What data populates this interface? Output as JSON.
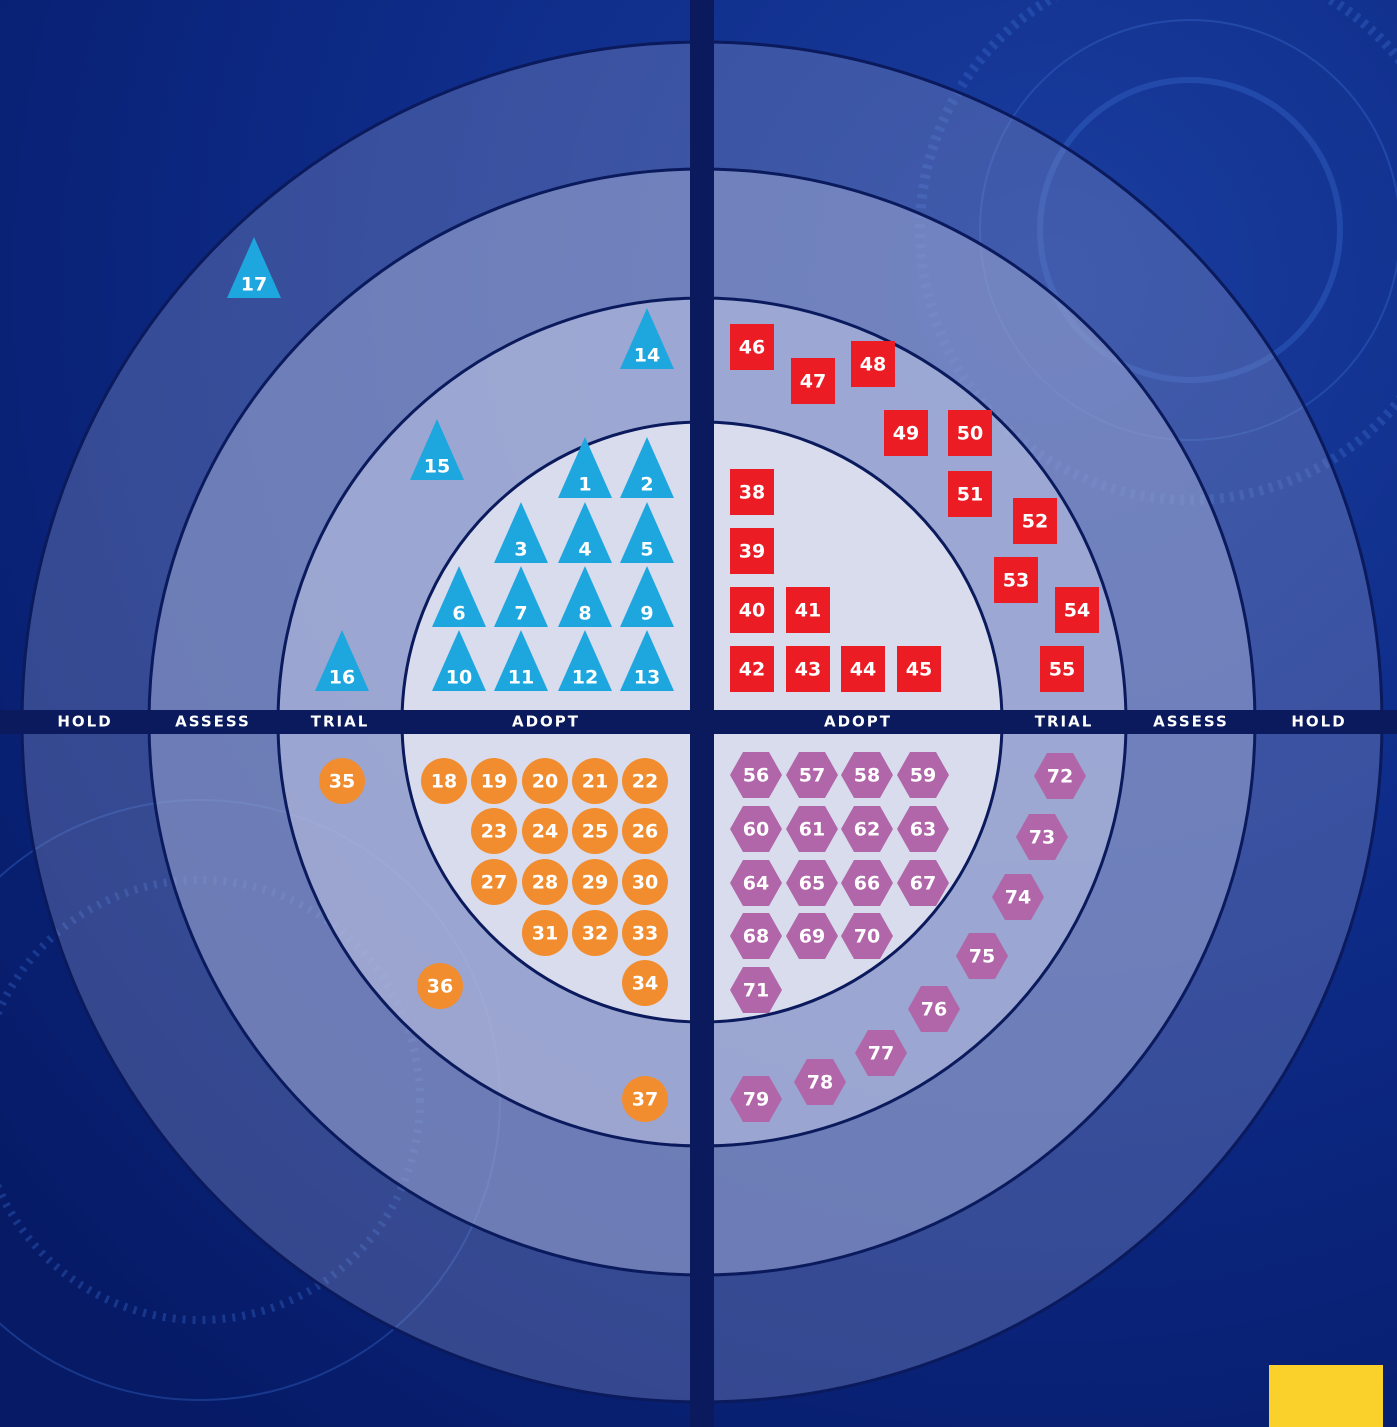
{
  "rings_left": [
    "HOLD",
    "ASSESS",
    "TRIAL",
    "ADOPT"
  ],
  "rings_right": [
    "ADOPT",
    "TRIAL",
    "ASSESS",
    "HOLD"
  ],
  "quadrants": [
    {
      "shape": "triangle",
      "color": "#1ea7df",
      "blips": [
        1,
        2,
        3,
        4,
        5,
        6,
        7,
        8,
        9,
        10,
        11,
        12,
        13,
        14,
        15,
        16,
        17
      ]
    },
    {
      "shape": "circle",
      "color": "#f18d2e",
      "blips": [
        18,
        19,
        20,
        21,
        22,
        23,
        24,
        25,
        26,
        27,
        28,
        29,
        30,
        31,
        32,
        33,
        34,
        35,
        36,
        37
      ]
    },
    {
      "shape": "square",
      "color": "#ec1c24",
      "blips": [
        38,
        39,
        40,
        41,
        42,
        43,
        44,
        45,
        46,
        47,
        48,
        49,
        50,
        51,
        52,
        53,
        54,
        55
      ]
    },
    {
      "shape": "hexagon",
      "color": "#b066a9",
      "blips": [
        56,
        57,
        58,
        59,
        60,
        61,
        62,
        63,
        64,
        65,
        66,
        67,
        68,
        69,
        70,
        71,
        72,
        73,
        74,
        75,
        76,
        77,
        78,
        79
      ]
    }
  ]
}
